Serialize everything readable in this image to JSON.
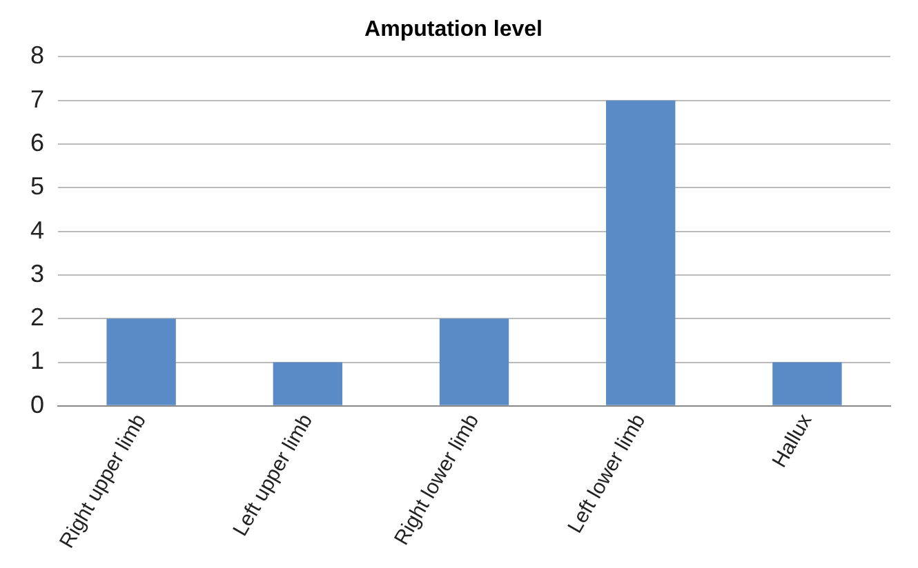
{
  "chart_data": {
    "type": "bar",
    "title": "Amputation level",
    "categories": [
      "Right upper limb",
      "Left upper limb",
      "Right lower limb",
      "Left lower limb",
      "Hallux"
    ],
    "values": [
      2,
      1,
      2,
      7,
      1
    ],
    "color": "#5b8bc6",
    "ylim": [
      0,
      8
    ],
    "yticks": [
      0,
      1,
      2,
      3,
      4,
      5,
      6,
      7,
      8
    ],
    "grid": "y",
    "legend": false
  }
}
